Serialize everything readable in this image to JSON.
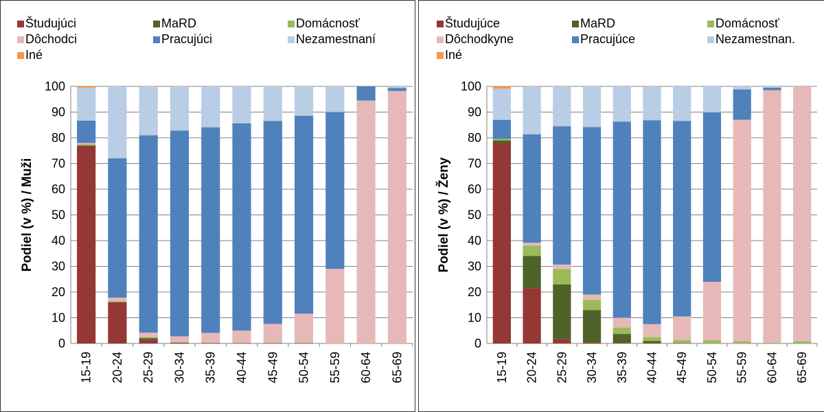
{
  "colors": {
    "studujuci": "#953735",
    "mard": "#4f6228",
    "domacnost": "#9bbb59",
    "dochodci": "#e6b9b8",
    "pracujuci": "#4f81bd",
    "nezamestnani": "#b9cde5",
    "ine": "#f79646"
  },
  "chart_data": [
    {
      "type": "bar",
      "stacked": true,
      "ylabel": "Podiel (v %) / Muži",
      "ylim": [
        0,
        100
      ],
      "yticks": [
        0,
        10,
        20,
        30,
        40,
        50,
        60,
        70,
        80,
        90,
        100
      ],
      "grid": true,
      "legend_position": "top",
      "categories": [
        "15-19",
        "20-24",
        "25-29",
        "30-34",
        "35-39",
        "40-44",
        "45-49",
        "50-54",
        "55-59",
        "60-64",
        "65-69"
      ],
      "series": [
        {
          "name": "Študujúci",
          "color_key": "studujuci",
          "values": [
            77,
            16,
            1.5,
            0.3,
            0.2,
            0.1,
            0.1,
            0.1,
            0,
            0,
            0
          ]
        },
        {
          "name": "MaRD",
          "color_key": "mard",
          "values": [
            0,
            0,
            0.5,
            0,
            0,
            0,
            0,
            0,
            0,
            0,
            0
          ]
        },
        {
          "name": "Domácnosť",
          "color_key": "domacnost",
          "values": [
            0.5,
            0.5,
            0.5,
            0.2,
            0.1,
            0.2,
            0.2,
            0.2,
            0,
            0,
            0
          ]
        },
        {
          "name": "Dôchodci",
          "color_key": "dochodci",
          "values": [
            0.5,
            1.3,
            1.7,
            2.3,
            3.8,
            4.7,
            7.3,
            11.3,
            29,
            94.5,
            98.2
          ]
        },
        {
          "name": "Pracujúci",
          "color_key": "pracujuci",
          "values": [
            8.7,
            54.2,
            76.8,
            80,
            80,
            80.6,
            79,
            77,
            61,
            5.5,
            1.2
          ]
        },
        {
          "name": "Nezamestnaní",
          "color_key": "nezamestnani",
          "values": [
            12.8,
            28,
            19,
            17.2,
            15.9,
            14.4,
            13.4,
            11.4,
            10,
            0,
            0.6
          ]
        },
        {
          "name": "Iné",
          "color_key": "ine",
          "values": [
            0.5,
            0,
            0,
            0,
            0,
            0,
            0,
            0,
            0,
            0,
            0
          ]
        }
      ]
    },
    {
      "type": "bar",
      "stacked": true,
      "ylabel": "Podiel (v %) / Ženy",
      "ylim": [
        0,
        100
      ],
      "yticks": [
        0,
        10,
        20,
        30,
        40,
        50,
        60,
        70,
        80,
        90,
        100
      ],
      "grid": true,
      "legend_position": "top",
      "categories": [
        "15-19",
        "20-24",
        "25-29",
        "30-34",
        "35-39",
        "40-44",
        "45-49",
        "50-54",
        "55-59",
        "60-64",
        "65-69"
      ],
      "series": [
        {
          "name": "Študujúce",
          "color_key": "studujuci",
          "values": [
            78,
            21.5,
            1.8,
            0.3,
            0.2,
            0.1,
            0.1,
            0,
            0,
            0,
            0
          ]
        },
        {
          "name": "MaRD",
          "color_key": "mard",
          "values": [
            1,
            12.5,
            21.2,
            12.7,
            3.5,
            0.9,
            0,
            0,
            0,
            0,
            0
          ]
        },
        {
          "name": "Domácnosť",
          "color_key": "domacnost",
          "values": [
            0.6,
            4,
            6,
            4,
            2.5,
            1.5,
            1.2,
            1.2,
            0.8,
            0.3,
            0.8
          ]
        },
        {
          "name": "Dôchodkyne",
          "color_key": "dochodci",
          "values": [
            0,
            1.2,
            1.7,
            2,
            3.8,
            5,
            9.2,
            22.8,
            86.2,
            98.2,
            99.2
          ]
        },
        {
          "name": "Pracujúce",
          "color_key": "pracujuci",
          "values": [
            7.4,
            42.2,
            53.8,
            65.2,
            76.3,
            79.3,
            76.1,
            65.9,
            11.8,
            1,
            0
          ]
        },
        {
          "name": "Nezamestnan.",
          "color_key": "nezamestnani",
          "values": [
            12.1,
            18.6,
            15.5,
            15.8,
            13.7,
            13.2,
            13.4,
            10.1,
            1.2,
            0.5,
            0
          ]
        },
        {
          "name": "Iné",
          "color_key": "ine",
          "values": [
            0.9,
            0,
            0,
            0,
            0,
            0,
            0,
            0,
            0,
            0,
            0
          ]
        }
      ]
    }
  ]
}
